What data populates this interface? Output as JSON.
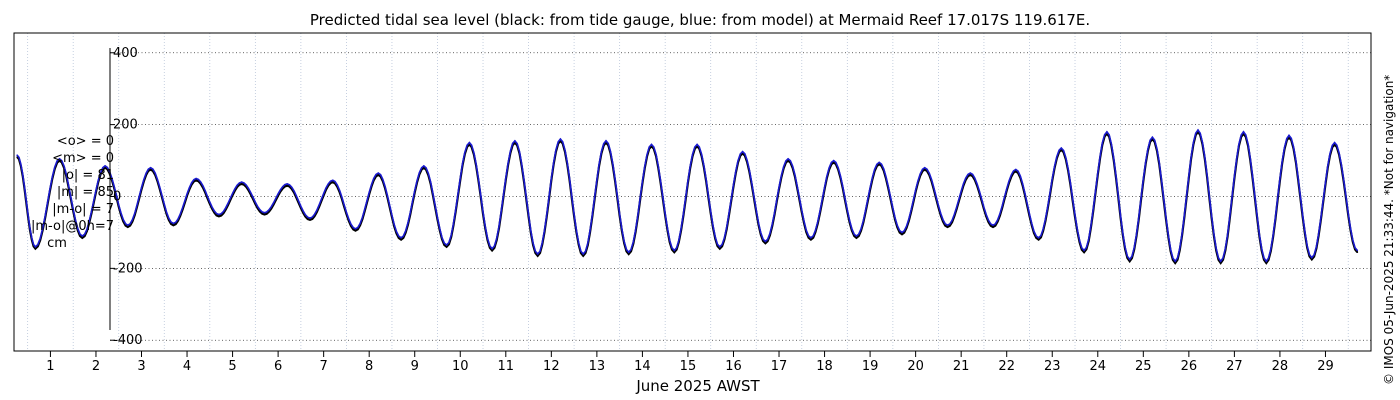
{
  "chart_data": {
    "type": "line",
    "title": "Predicted tidal sea level (black: from tide gauge, blue: from model) at Mermaid Reef 17.017S 119.617E.",
    "xlabel": "June 2025 AWST",
    "ylabel": "",
    "xlim": [
      0.2,
      30
    ],
    "ylim": [
      -430,
      455
    ],
    "yticks": [
      400,
      200,
      0,
      -200,
      -400
    ],
    "xticks": [
      1,
      2,
      3,
      4,
      5,
      6,
      7,
      8,
      9,
      10,
      11,
      12,
      13,
      14,
      15,
      16,
      17,
      18,
      19,
      20,
      21,
      22,
      23,
      24,
      25,
      26,
      27,
      28,
      29
    ],
    "grid": true,
    "series": [
      {
        "name": "from tide gauge",
        "color": "#000000",
        "x": [
          0.27,
          0.67,
          1.2,
          1.7,
          2.2,
          2.7,
          3.2,
          3.7,
          4.2,
          4.7,
          5.2,
          5.7,
          6.2,
          6.7,
          7.2,
          7.7,
          8.2,
          8.7,
          9.2,
          9.7,
          10.2,
          10.7,
          11.2,
          11.7,
          12.2,
          12.7,
          13.2,
          13.7,
          14.2,
          14.7,
          15.2,
          15.7,
          16.2,
          16.7,
          17.2,
          17.7,
          18.2,
          18.7,
          19.2,
          19.7,
          20.2,
          20.7,
          21.2,
          21.7,
          22.2,
          22.7,
          23.2,
          23.7,
          24.2,
          24.7,
          25.2,
          25.7,
          26.2,
          26.7,
          27.2,
          27.7,
          28.2,
          28.7,
          29.2,
          29.7
        ],
        "y": [
          110,
          -145,
          100,
          -115,
          80,
          -85,
          75,
          -80,
          45,
          -55,
          35,
          -50,
          30,
          -65,
          40,
          -95,
          60,
          -120,
          80,
          -140,
          145,
          -150,
          150,
          -165,
          155,
          -165,
          150,
          -160,
          140,
          -155,
          140,
          -145,
          120,
          -130,
          100,
          -120,
          95,
          -115,
          90,
          -105,
          75,
          -85,
          60,
          -85,
          70,
          -120,
          130,
          -155,
          175,
          -180,
          160,
          -185,
          180,
          -185,
          175,
          -185,
          165,
          -175,
          145,
          -155
        ]
      },
      {
        "name": "from model",
        "color": "#1a1ad0",
        "x": [
          0.27,
          0.67,
          1.2,
          1.7,
          2.2,
          2.7,
          3.2,
          3.7,
          4.2,
          4.7,
          5.2,
          5.7,
          6.2,
          6.7,
          7.2,
          7.7,
          8.2,
          8.7,
          9.2,
          9.7,
          10.2,
          10.7,
          11.2,
          11.7,
          12.2,
          12.7,
          13.2,
          13.7,
          14.2,
          14.7,
          15.2,
          15.7,
          16.2,
          16.7,
          17.2,
          17.7,
          18.2,
          18.7,
          19.2,
          19.7,
          20.2,
          20.7,
          21.2,
          21.7,
          22.2,
          22.7,
          23.2,
          23.7,
          24.2,
          24.7,
          25.2,
          25.7,
          26.2,
          26.7,
          27.2,
          27.7,
          28.2,
          28.7,
          29.2,
          29.7
        ],
        "y": [
          115,
          -140,
          105,
          -110,
          85,
          -80,
          80,
          -75,
          50,
          -50,
          40,
          -45,
          35,
          -60,
          45,
          -90,
          65,
          -115,
          85,
          -135,
          150,
          -145,
          155,
          -160,
          160,
          -160,
          155,
          -155,
          145,
          -150,
          145,
          -140,
          125,
          -125,
          105,
          -115,
          100,
          -110,
          95,
          -100,
          80,
          -80,
          65,
          -80,
          75,
          -115,
          135,
          -150,
          180,
          -175,
          165,
          -180,
          185,
          -180,
          180,
          -180,
          170,
          -170,
          150,
          -150
        ]
      }
    ]
  },
  "stats": {
    "lines": [
      "<o> = 0",
      "<m> = 0",
      "|o| = 81",
      "|m| = 85",
      "|m-o| = 7",
      "|m-o|@0h=7"
    ],
    "unit": "cm"
  },
  "watermark": "© IMOS 05-Jun-2025 21:33:44. *Not for navigation*"
}
